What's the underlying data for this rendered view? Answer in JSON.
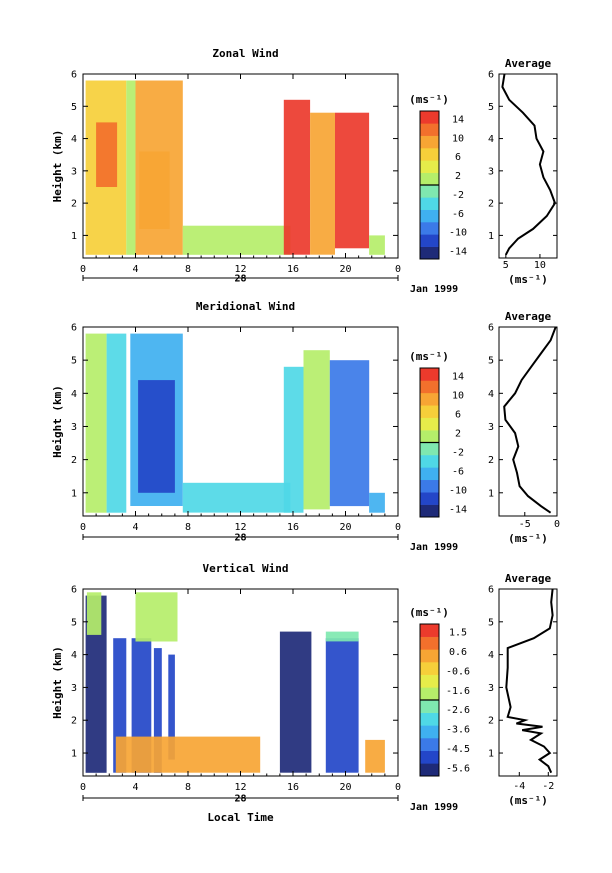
{
  "chart_data": [
    {
      "type": "heatmap",
      "title": "Zonal Wind",
      "ylabel": "Height (km)",
      "x_ticks": [
        "0",
        "4",
        "8",
        "12",
        "16",
        "20",
        "0"
      ],
      "date_label": "28",
      "month_label": "Jan 1999",
      "ylim": [
        0.3,
        6
      ],
      "y_ticks": [
        "1",
        "2",
        "3",
        "4",
        "5",
        "6"
      ],
      "colorbar": {
        "unit": "(ms⁻¹)",
        "ticks": [
          "14",
          "10",
          "6",
          "2",
          "-2",
          "-6",
          "-10",
          "-14"
        ],
        "range": [
          -16,
          16
        ]
      },
      "data_blocks": [
        {
          "x0": 0.2,
          "x1": 3.3,
          "y0": 0.4,
          "y1": 5.8,
          "value": 6
        },
        {
          "x0": 1.0,
          "x1": 2.6,
          "y0": 2.5,
          "y1": 4.5,
          "value": 12
        },
        {
          "x0": 3.3,
          "x1": 4.0,
          "y0": 0.4,
          "y1": 5.8,
          "value": 2
        },
        {
          "x0": 4.0,
          "x1": 7.6,
          "y0": 0.4,
          "y1": 5.8,
          "value": 8
        },
        {
          "x0": 4.3,
          "x1": 6.6,
          "y0": 1.2,
          "y1": 3.6,
          "value": 10
        },
        {
          "x0": 7.6,
          "x1": 15.8,
          "y0": 0.4,
          "y1": 1.3,
          "value": 0
        },
        {
          "x0": 15.3,
          "x1": 17.3,
          "y0": 0.4,
          "y1": 5.2,
          "value": 14
        },
        {
          "x0": 17.3,
          "x1": 19.2,
          "y0": 0.4,
          "y1": 4.8,
          "value": 8
        },
        {
          "x0": 19.2,
          "x1": 21.8,
          "y0": 0.6,
          "y1": 4.8,
          "value": 14
        },
        {
          "x0": 21.8,
          "x1": 23.0,
          "y0": 0.4,
          "y1": 1.0,
          "value": 2
        }
      ],
      "average_profile": {
        "title": "Average",
        "xlabel": "(ms⁻¹)",
        "x_ticks": [
          "5",
          "10"
        ],
        "xlim": [
          4,
          12.5
        ],
        "height": [
          0.4,
          0.6,
          0.9,
          1.2,
          1.6,
          2.0,
          2.4,
          2.8,
          3.2,
          3.6,
          4.0,
          4.4,
          4.8,
          5.2,
          5.6,
          6.0
        ],
        "value": [
          5.0,
          5.5,
          6.8,
          9.0,
          11.0,
          12.2,
          11.5,
          10.5,
          10.0,
          10.5,
          9.5,
          9.2,
          7.5,
          5.5,
          4.5,
          4.8
        ]
      }
    },
    {
      "type": "heatmap",
      "title": "Meridional Wind",
      "ylabel": "Height (km)",
      "x_ticks": [
        "0",
        "4",
        "8",
        "12",
        "16",
        "20",
        "0"
      ],
      "date_label": "28",
      "month_label": "Jan 1999",
      "ylim": [
        0.3,
        6
      ],
      "y_ticks": [
        "1",
        "2",
        "3",
        "4",
        "5",
        "6"
      ],
      "colorbar": {
        "unit": "(ms⁻¹)",
        "ticks": [
          "14",
          "10",
          "6",
          "2",
          "-2",
          "-6",
          "-10",
          "-14"
        ],
        "range": [
          -16,
          16
        ]
      },
      "data_blocks": [
        {
          "x0": 0.2,
          "x1": 1.8,
          "y0": 0.4,
          "y1": 5.8,
          "value": 0
        },
        {
          "x0": 1.8,
          "x1": 3.3,
          "y0": 0.4,
          "y1": 5.8,
          "value": -4
        },
        {
          "x0": 3.6,
          "x1": 7.6,
          "y0": 0.6,
          "y1": 5.8,
          "value": -6
        },
        {
          "x0": 4.2,
          "x1": 7.0,
          "y0": 1.0,
          "y1": 4.4,
          "value": -11
        },
        {
          "x0": 7.6,
          "x1": 15.8,
          "y0": 0.4,
          "y1": 1.3,
          "value": -4
        },
        {
          "x0": 15.3,
          "x1": 16.8,
          "y0": 0.4,
          "y1": 4.8,
          "value": -4
        },
        {
          "x0": 16.8,
          "x1": 18.8,
          "y0": 0.5,
          "y1": 5.3,
          "value": 0
        },
        {
          "x0": 18.8,
          "x1": 21.8,
          "y0": 0.6,
          "y1": 5.0,
          "value": -10
        },
        {
          "x0": 21.8,
          "x1": 23.0,
          "y0": 0.4,
          "y1": 1.0,
          "value": -6
        }
      ],
      "average_profile": {
        "title": "Average",
        "xlabel": "(ms⁻¹)",
        "x_ticks": [
          "-5",
          "0"
        ],
        "xlim": [
          -9,
          0
        ],
        "height": [
          0.4,
          0.6,
          0.9,
          1.2,
          1.6,
          2.0,
          2.4,
          2.8,
          3.2,
          3.6,
          4.0,
          4.4,
          4.8,
          5.2,
          5.6,
          6.0
        ],
        "value": [
          -1.0,
          -2.5,
          -4.5,
          -5.8,
          -6.2,
          -6.8,
          -6.0,
          -6.5,
          -8.0,
          -8.2,
          -6.5,
          -5.5,
          -4.0,
          -2.5,
          -1.0,
          -0.2
        ]
      }
    },
    {
      "type": "heatmap",
      "title": "Vertical Wind",
      "ylabel": "Height (km)",
      "xlabel": "Local Time",
      "x_ticks": [
        "0",
        "4",
        "8",
        "12",
        "16",
        "20",
        "0"
      ],
      "date_label": "28",
      "month_label": "Jan 1999",
      "ylim": [
        0.3,
        6
      ],
      "y_ticks": [
        "1",
        "2",
        "3",
        "4",
        "5",
        "6"
      ],
      "colorbar": {
        "unit": "(ms⁻¹)",
        "ticks": [
          "1.5",
          "0.6",
          "-0.6",
          "-1.6",
          "-2.6",
          "-3.6",
          "-4.5",
          "-5.6"
        ],
        "range": [
          -6.1,
          2.0
        ]
      },
      "data_blocks": [
        {
          "x0": 0.2,
          "x1": 1.8,
          "y0": 0.4,
          "y1": 5.8,
          "value": -5.6
        },
        {
          "x0": 0.3,
          "x1": 1.4,
          "y0": 4.6,
          "y1": 5.9,
          "value": -1.6
        },
        {
          "x0": 2.3,
          "x1": 3.3,
          "y0": 0.4,
          "y1": 4.5,
          "value": -5.0
        },
        {
          "x0": 3.7,
          "x1": 5.2,
          "y0": 0.4,
          "y1": 4.5,
          "value": -5.4
        },
        {
          "x0": 4.0,
          "x1": 7.2,
          "y0": 4.4,
          "y1": 5.9,
          "value": -1.6
        },
        {
          "x0": 5.4,
          "x1": 6.0,
          "y0": 0.4,
          "y1": 4.2,
          "value": -5.0
        },
        {
          "x0": 6.5,
          "x1": 7.0,
          "y0": 0.8,
          "y1": 4.0,
          "value": -5.0
        },
        {
          "x0": 2.5,
          "x1": 13.5,
          "y0": 0.4,
          "y1": 1.5,
          "value": 0.3
        },
        {
          "x0": 15.0,
          "x1": 17.4,
          "y0": 0.4,
          "y1": 4.7,
          "value": -5.6
        },
        {
          "x0": 18.5,
          "x1": 21.0,
          "y0": 0.4,
          "y1": 4.5,
          "value": -5.2
        },
        {
          "x0": 18.5,
          "x1": 21.0,
          "y0": 4.4,
          "y1": 4.7,
          "value": -2.6
        },
        {
          "x0": 21.5,
          "x1": 23.0,
          "y0": 0.4,
          "y1": 1.4,
          "value": 0.3
        }
      ],
      "average_profile": {
        "title": "Average",
        "xlabel": "(ms⁻¹)",
        "x_ticks": [
          "-4",
          "-2"
        ],
        "xlim": [
          -5.4,
          -1.4
        ],
        "height": [
          0.4,
          0.6,
          0.8,
          1.0,
          1.2,
          1.4,
          1.6,
          1.7,
          1.8,
          1.9,
          2.0,
          2.1,
          2.4,
          3.0,
          3.6,
          4.2,
          4.5,
          4.8,
          5.2,
          5.6,
          6.0
        ],
        "value": [
          -1.8,
          -2.0,
          -2.6,
          -1.9,
          -2.3,
          -3.2,
          -2.5,
          -3.8,
          -2.4,
          -4.2,
          -3.6,
          -4.8,
          -4.6,
          -4.9,
          -4.8,
          -4.8,
          -3.0,
          -1.9,
          -1.7,
          -1.8,
          -1.7
        ]
      }
    }
  ]
}
